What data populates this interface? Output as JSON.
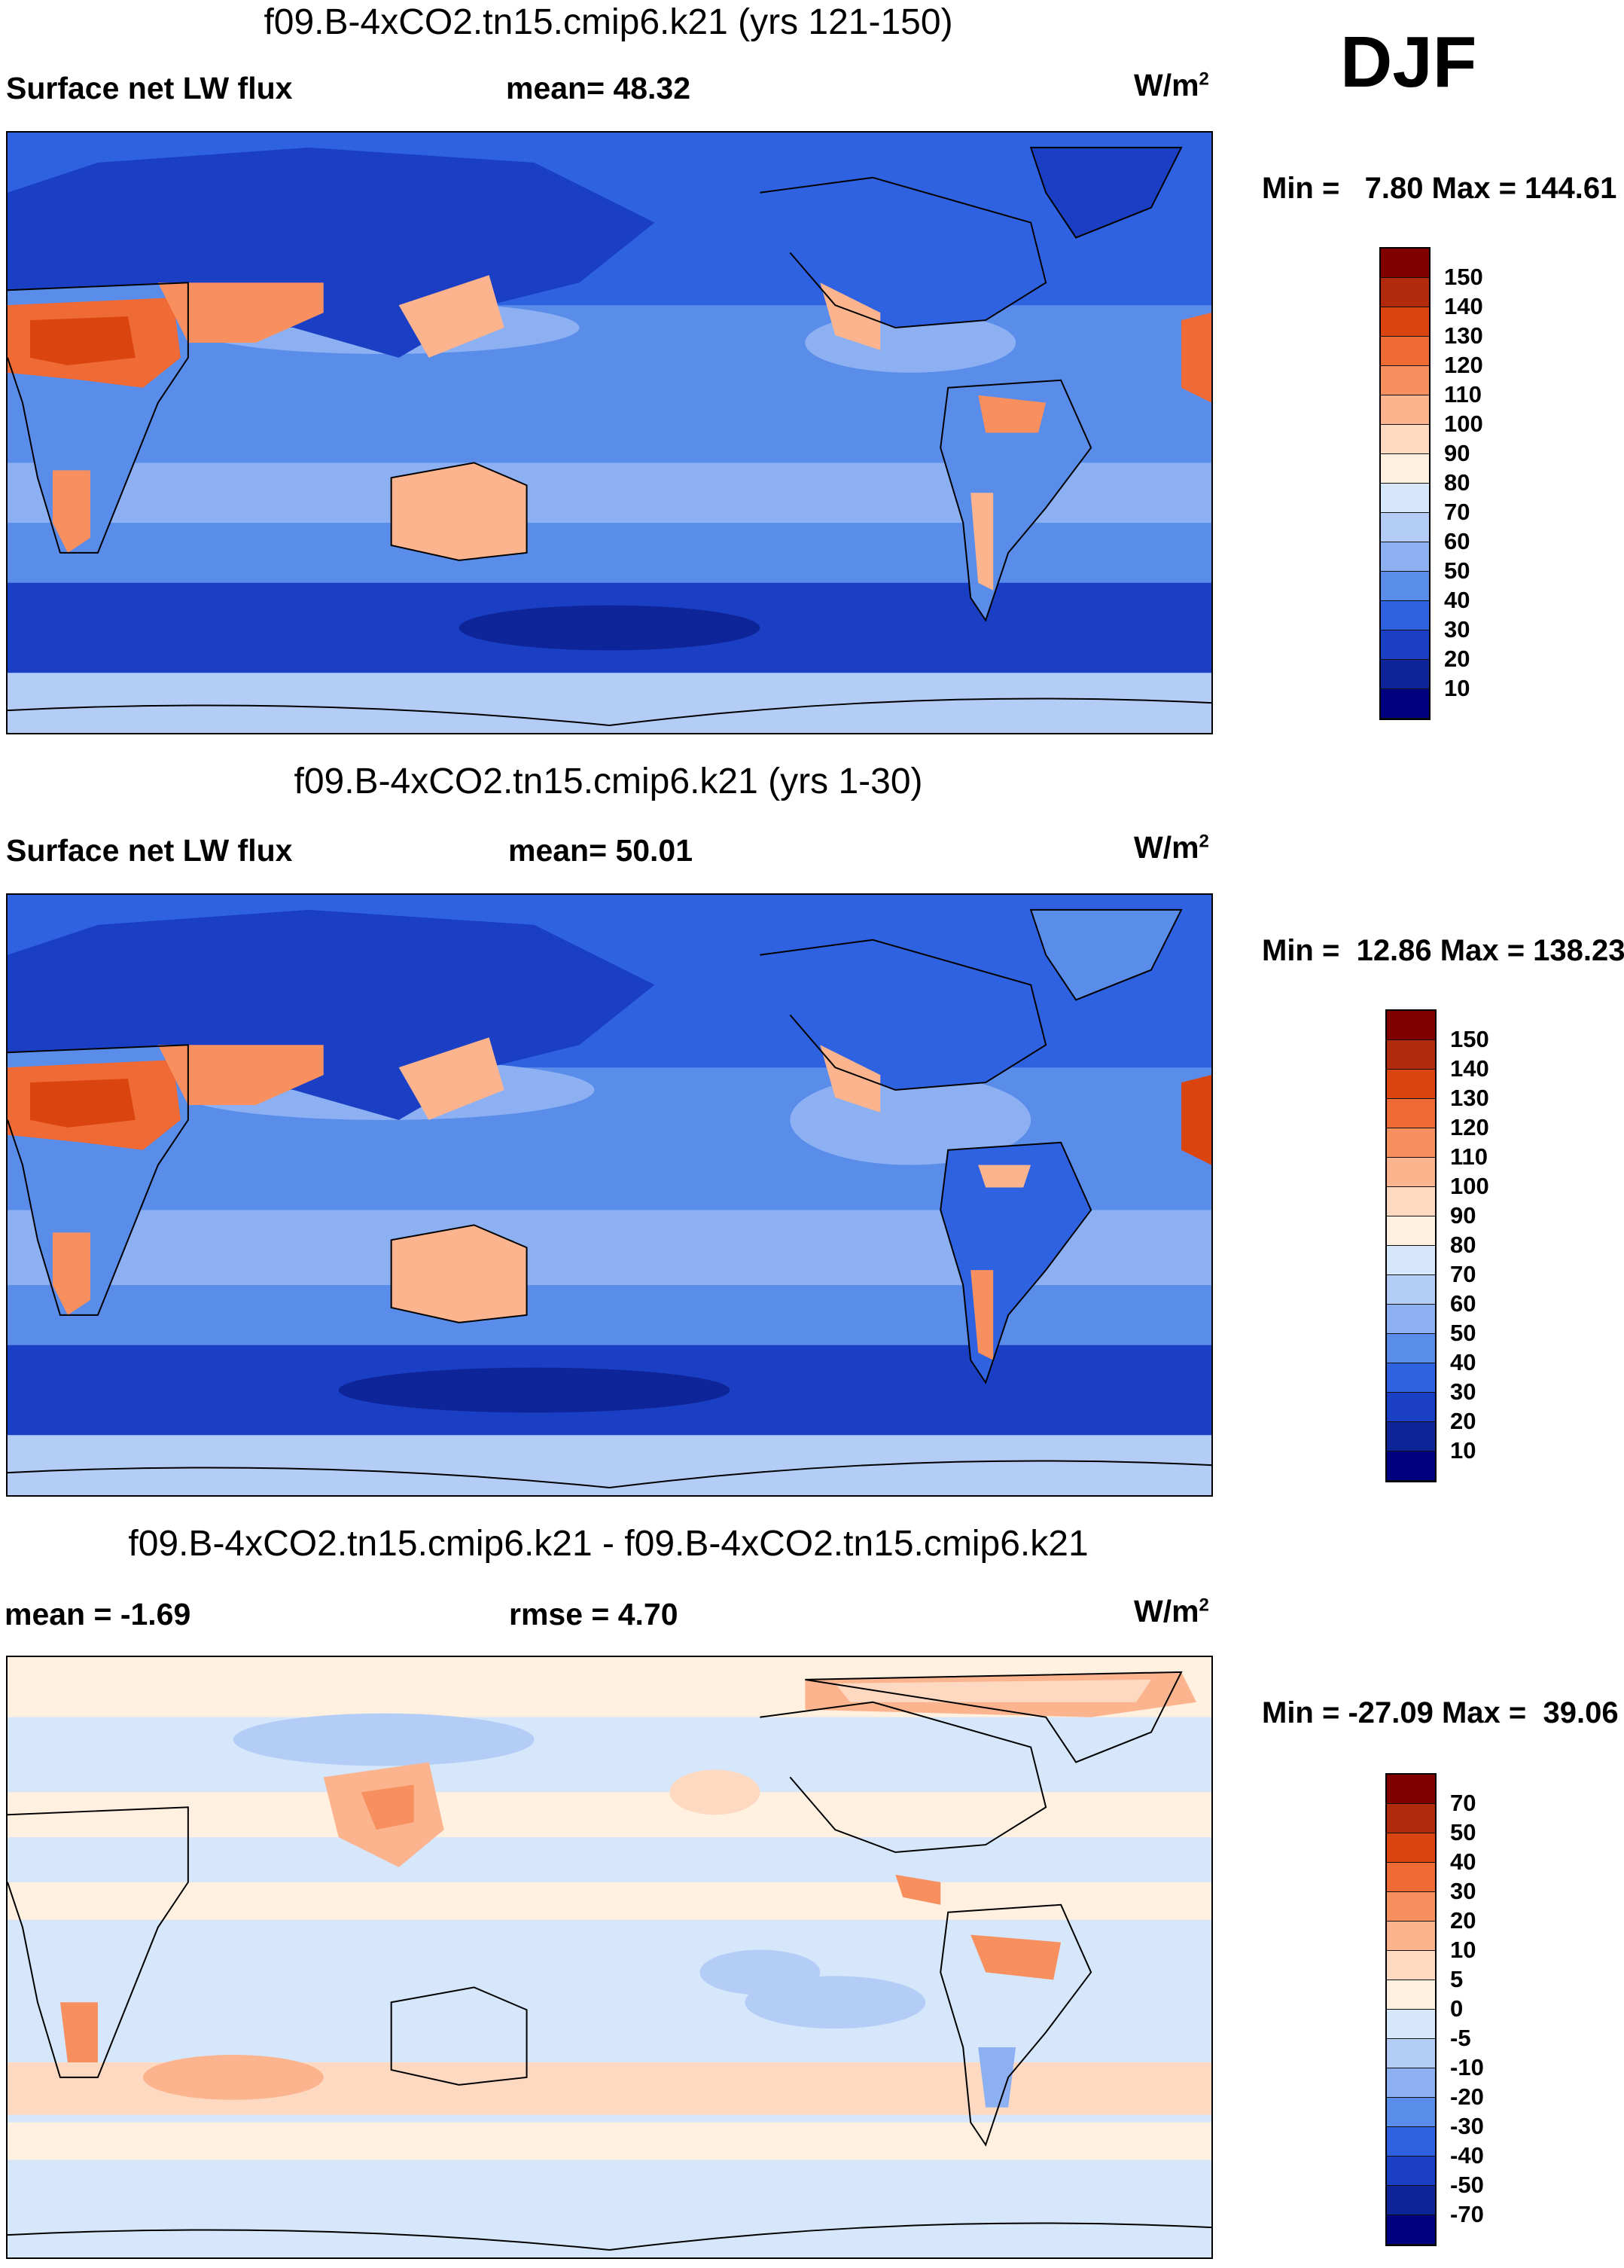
{
  "season": "DJF",
  "panels": [
    {
      "title": "f09.B-4xCO2.tn15.cmip6.k21 (yrs 121-150)",
      "left_label": "Surface net LW flux",
      "center_label": "mean=  48.32",
      "units_base": "W/m",
      "units_exp": "2",
      "minmax": "Min =   7.80 Max = 144.61",
      "colorbar_labels": [
        "150",
        "140",
        "130",
        "120",
        "110",
        "100",
        "90",
        "80",
        "70",
        "60",
        "50",
        "40",
        "30",
        "20",
        "10"
      ],
      "colorbar_colors": [
        "#800000",
        "#b22a0c",
        "#d9440f",
        "#ef6a35",
        "#f88f5f",
        "#fbb48e",
        "#fdd9c2",
        "#fff0e0",
        "#d6e6fb",
        "#b3cdf7",
        "#8cb0f2",
        "#5a8cea",
        "#2f62e0",
        "#1a3fc4",
        "#0d2599",
        "#000080"
      ]
    },
    {
      "title": "f09.B-4xCO2.tn15.cmip6.k21 (yrs 1-30)",
      "left_label": "Surface net LW flux",
      "center_label": "mean=  50.01",
      "units_base": "W/m",
      "units_exp": "2",
      "minmax": "Min =  12.86 Max = 138.23",
      "colorbar_labels": [
        "150",
        "140",
        "130",
        "120",
        "110",
        "100",
        "90",
        "80",
        "70",
        "60",
        "50",
        "40",
        "30",
        "20",
        "10"
      ],
      "colorbar_colors": [
        "#800000",
        "#b22a0c",
        "#d9440f",
        "#ef6a35",
        "#f88f5f",
        "#fbb48e",
        "#fdd9c2",
        "#fff0e0",
        "#d6e6fb",
        "#b3cdf7",
        "#8cb0f2",
        "#5a8cea",
        "#2f62e0",
        "#1a3fc4",
        "#0d2599",
        "#000080"
      ]
    },
    {
      "title": "f09.B-4xCO2.tn15.cmip6.k21 - f09.B-4xCO2.tn15.cmip6.k21",
      "left_label": "mean =  -1.69",
      "center_label": "rmse =    4.70",
      "units_base": "W/m",
      "units_exp": "2",
      "minmax": "Min = -27.09 Max =  39.06",
      "colorbar_labels": [
        "70",
        "50",
        "40",
        "30",
        "20",
        "10",
        "5",
        "0",
        "-5",
        "-10",
        "-20",
        "-30",
        "-40",
        "-50",
        "-70"
      ],
      "colorbar_colors": [
        "#800000",
        "#b22a0c",
        "#d9440f",
        "#ef6a35",
        "#f88f5f",
        "#fbb48e",
        "#fdd9c2",
        "#fff0e0",
        "#d6e6fb",
        "#b3cdf7",
        "#8cb0f2",
        "#5a8cea",
        "#2f62e0",
        "#1a3fc4",
        "#0d2599",
        "#000080"
      ]
    }
  ]
}
